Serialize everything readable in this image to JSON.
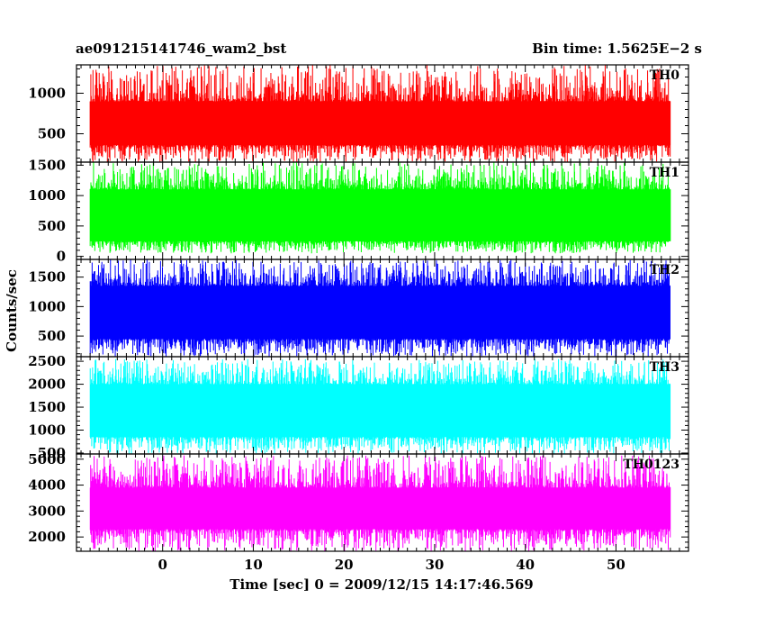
{
  "header": {
    "left_title": "ae091215141746_wam2_bst",
    "right_title": "Bin time: 1.5625E−2 s"
  },
  "colors": {
    "axes": "#000000",
    "background": "#ffffff"
  },
  "chart_data": {
    "type": "line",
    "subtype": "stacked light curves",
    "xlabel": "Time [sec] 0 = 2009/12/15 14:17:46.569",
    "ylabel": "Counts/sec",
    "xlim": [
      -9.5,
      58
    ],
    "data_x_range": [
      -8,
      56
    ],
    "bin_time_s": 0.015625,
    "x_ticks": [
      0,
      10,
      20,
      30,
      40,
      50
    ],
    "panels": [
      {
        "name": "TH0",
        "color": "#ff0000",
        "ylim": [
          150,
          1350
        ],
        "y_ticks": [
          500,
          1000
        ],
        "mean": 620,
        "band_low": 360,
        "band_high": 900,
        "min": 150,
        "max": 1350
      },
      {
        "name": "TH1",
        "color": "#00ff00",
        "ylim": [
          -50,
          1550
        ],
        "y_ticks": [
          0,
          500,
          1000,
          1500
        ],
        "mean": 650,
        "band_low": 250,
        "band_high": 1100,
        "min": 50,
        "max": 1550
      },
      {
        "name": "TH2",
        "color": "#0000ff",
        "ylim": [
          150,
          1800
        ],
        "y_ticks": [
          500,
          1000,
          1500
        ],
        "mean": 880,
        "band_low": 450,
        "band_high": 1350,
        "min": 150,
        "max": 1800
      },
      {
        "name": "TH3",
        "color": "#00ffff",
        "ylim": [
          480,
          2600
        ],
        "y_ticks": [
          500,
          1000,
          1500,
          2000,
          2500
        ],
        "mean": 1400,
        "band_low": 850,
        "band_high": 2000,
        "min": 480,
        "max": 2550
      },
      {
        "name": "TH0123",
        "color": "#ff00ff",
        "ylim": [
          1450,
          5200
        ],
        "y_ticks": [
          2000,
          3000,
          4000,
          5000
        ],
        "mean": 3050,
        "band_low": 2300,
        "band_high": 3900,
        "min": 1450,
        "max": 5150
      }
    ]
  }
}
